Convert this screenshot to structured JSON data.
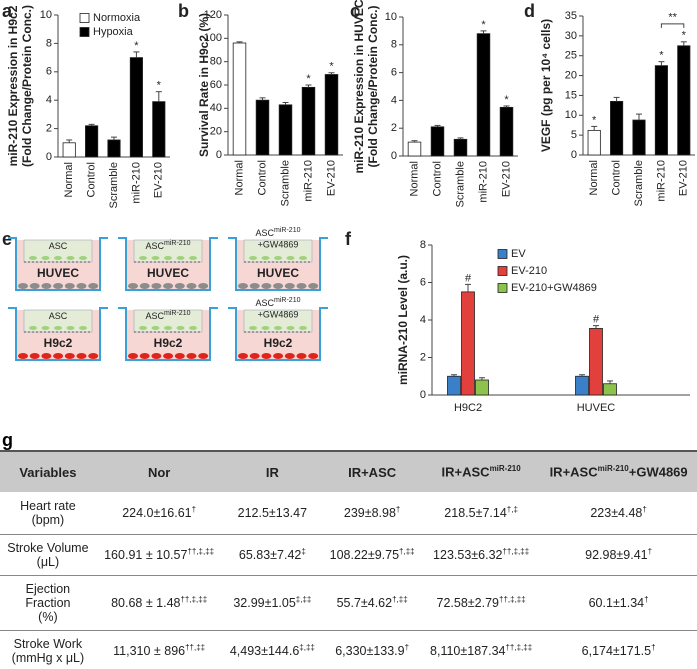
{
  "chart_data": [
    {
      "type": "bar",
      "panel": "a",
      "ylabel": [
        "miR-210 Expression in H9c2",
        "(Fold Change/Protein Conc.)"
      ],
      "categories": [
        "Normal",
        "Control",
        "Scramble",
        "miR-210",
        "EV-210"
      ],
      "values": [
        1.0,
        2.2,
        1.2,
        7.0,
        3.9
      ],
      "errors": [
        0.2,
        0.1,
        0.2,
        0.4,
        0.7
      ],
      "colors": [
        "#ffffff",
        "#000000",
        "#000000",
        "#000000",
        "#000000"
      ],
      "markers": [
        null,
        null,
        null,
        "*",
        "*"
      ],
      "legend": [
        {
          "name": "Normoxia",
          "color": "#ffffff"
        },
        {
          "name": "Hypoxia",
          "color": "#000000"
        }
      ],
      "ylim": [
        0,
        10
      ],
      "yticks": [
        0,
        2,
        4,
        6,
        8,
        10
      ]
    },
    {
      "type": "bar",
      "panel": "b",
      "ylabel": [
        "Survival Rate in H9c2 (%)"
      ],
      "categories": [
        "Normal",
        "Control",
        "Scramble",
        "miR-210",
        "EV-210"
      ],
      "values": [
        96,
        47,
        43,
        58,
        69
      ],
      "errors": [
        1,
        2,
        2,
        2,
        1.5
      ],
      "colors": [
        "#ffffff",
        "#000000",
        "#000000",
        "#000000",
        "#000000"
      ],
      "markers": [
        null,
        null,
        null,
        "*",
        "*"
      ],
      "ylim": [
        0,
        120
      ],
      "yticks": [
        0,
        20,
        40,
        60,
        80,
        100,
        120
      ]
    },
    {
      "type": "bar",
      "panel": "c",
      "ylabel": [
        "miR-210 Expression in HUVEC",
        "(Fold Change/Protein Conc.)"
      ],
      "categories": [
        "Normal",
        "Control",
        "Scramble",
        "miR-210",
        "EV-210"
      ],
      "values": [
        1.0,
        2.1,
        1.2,
        8.8,
        3.5
      ],
      "errors": [
        0.1,
        0.1,
        0.1,
        0.2,
        0.1
      ],
      "colors": [
        "#ffffff",
        "#000000",
        "#000000",
        "#000000",
        "#000000"
      ],
      "markers": [
        null,
        null,
        null,
        "*",
        "*"
      ],
      "ylim": [
        0,
        10
      ],
      "yticks": [
        0,
        2,
        4,
        6,
        8,
        10
      ]
    },
    {
      "type": "bar",
      "panel": "d",
      "ylabel": [
        "VEGF (pg per 10⁴ cells)"
      ],
      "categories": [
        "Normal",
        "Control",
        "Scramble",
        "miR-210",
        "EV-210"
      ],
      "values": [
        6.2,
        13.5,
        8.8,
        22.5,
        27.5
      ],
      "errors": [
        1.0,
        1.0,
        1.5,
        1.0,
        1.0
      ],
      "colors": [
        "#ffffff",
        "#000000",
        "#000000",
        "#000000",
        "#000000"
      ],
      "markers": [
        "*",
        null,
        null,
        "*",
        "*"
      ],
      "bracket": "**",
      "ylim": [
        0,
        35
      ],
      "yticks": [
        0,
        5,
        10,
        15,
        20,
        25,
        30,
        35
      ]
    },
    {
      "type": "bar",
      "panel": "f",
      "ylabel": [
        "miRNA-210 Level (a.u.)"
      ],
      "categories": [
        "H9C2",
        "HUVEC"
      ],
      "series": [
        {
          "name": "EV",
          "color": "#3b7fc8",
          "values": [
            1.0,
            1.0
          ],
          "errors": [
            0.08,
            0.08
          ]
        },
        {
          "name": "EV-210",
          "color": "#e2403c",
          "values": [
            5.5,
            3.55
          ],
          "errors": [
            0.4,
            0.15
          ],
          "markers": [
            "#",
            "#"
          ]
        },
        {
          "name": "EV-210+GW4869",
          "color": "#8dc24c",
          "values": [
            0.8,
            0.6
          ],
          "errors": [
            0.12,
            0.15
          ]
        }
      ],
      "ylim": [
        0,
        8
      ],
      "yticks": [
        0,
        2,
        4,
        6,
        8
      ]
    }
  ],
  "diagram": {
    "panel": "e",
    "wells": [
      {
        "top": "ASC",
        "bottom": "HUVEC"
      },
      {
        "top": "ASC",
        "sup": "miR-210",
        "bottom": "HUVEC"
      },
      {
        "top": "ASC",
        "sup": "miR-210",
        "suffix": "+GW4869",
        "bottom": "HUVEC"
      },
      {
        "top": "ASC",
        "bottom": "H9c2"
      },
      {
        "top": "ASC",
        "sup": "miR-210",
        "bottom": "H9c2"
      },
      {
        "top": "ASC",
        "sup": "miR-210",
        "suffix": "+GW4869",
        "bottom": "H9c2"
      }
    ]
  },
  "table": {
    "panel": "g",
    "header": [
      {
        "text": "Variables"
      },
      {
        "text": "Nor"
      },
      {
        "text": "IR"
      },
      {
        "text": "IR+ASC"
      },
      {
        "text": "IR+ASC",
        "sup": "miR-210"
      },
      {
        "text": "IR+ASC",
        "sup": "miR-210",
        "suffix": "+GW4869"
      }
    ],
    "rows": [
      {
        "label": [
          "Heart rate",
          "(bpm)"
        ],
        "cells": [
          {
            "text": "224.0±16.61",
            "sup": "†"
          },
          {
            "text": "212.5±13.47"
          },
          {
            "text": "239±8.98",
            "sup": "†"
          },
          {
            "text": "218.5±7.14",
            "sup": "†,‡"
          },
          {
            "text": "223±4.48",
            "sup": "†"
          }
        ]
      },
      {
        "label": [
          "Stroke Volume",
          "(μL)"
        ],
        "cells": [
          {
            "text": "160.91 ± 10.57",
            "sup": "††,‡,‡‡"
          },
          {
            "text": "65.83±7.42",
            "sup": "‡"
          },
          {
            "text": "108.22±9.75",
            "sup": "†,‡‡"
          },
          {
            "text": "123.53±6.32",
            "sup": "††,‡,‡‡"
          },
          {
            "text": "92.98±9.41",
            "sup": "†"
          }
        ]
      },
      {
        "label": [
          "Ejection",
          "Fraction",
          "(%)"
        ],
        "cells": [
          {
            "text": "80.68 ± 1.48",
            "sup": "††,‡,‡‡"
          },
          {
            "text": "32.99±1.05",
            "sup": "‡,‡‡"
          },
          {
            "text": "55.7±4.62",
            "sup": "†,‡‡"
          },
          {
            "text": "72.58±2.79",
            "sup": "††,‡,‡‡"
          },
          {
            "text": "60.1±1.34",
            "sup": "†"
          }
        ]
      },
      {
        "label": [
          "Stroke Work",
          "(mmHg x μL)"
        ],
        "cells": [
          {
            "text": "11,310 ± 896",
            "sup": "††,‡‡"
          },
          {
            "text": "4,493±144.6",
            "sup": "‡,‡‡"
          },
          {
            "text": "6,330±133.9",
            "sup": "†"
          },
          {
            "text": "8,110±187.34",
            "sup": "††,‡,‡‡"
          },
          {
            "text": "6,174±171.5",
            "sup": "†"
          }
        ]
      }
    ]
  }
}
